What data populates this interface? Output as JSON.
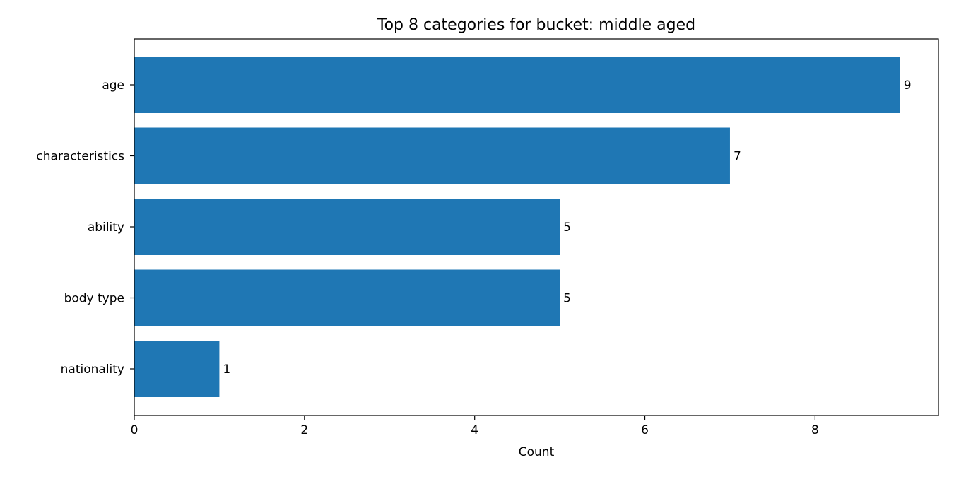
{
  "chart_data": {
    "type": "bar",
    "orientation": "horizontal",
    "title": "Top 8 categories for bucket: middle aged",
    "xlabel": "Count",
    "ylabel": "",
    "categories": [
      "age",
      "characteristics",
      "ability",
      "body type",
      "nationality"
    ],
    "values": [
      9,
      7,
      5,
      5,
      1
    ],
    "xlim": [
      0,
      9.45
    ],
    "xticks": [
      0,
      2,
      4,
      6,
      8
    ],
    "grid": false,
    "legend": "none",
    "bar_color": "#1f77b4"
  }
}
